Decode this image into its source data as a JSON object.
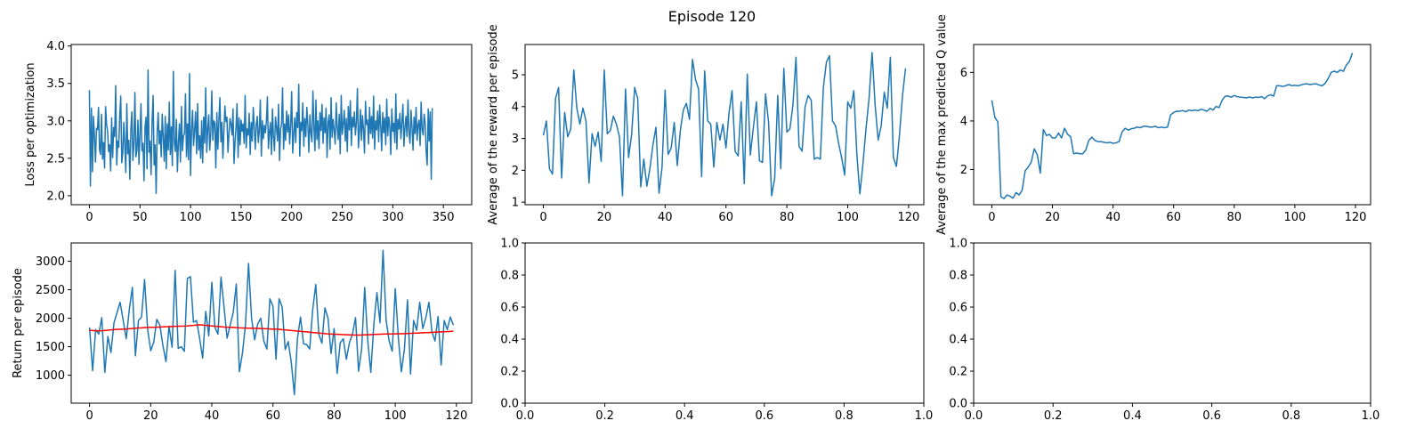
{
  "figure": {
    "suptitle": "Episode 120"
  },
  "colors": {
    "series_blue": "#1f77b4",
    "moving_average_red": "#ff0000",
    "axis": "#000000"
  },
  "chart_data": [
    {
      "id": "loss",
      "type": "line",
      "title": "",
      "xlabel": "",
      "ylabel": "Loss per optimization",
      "xlim": [
        -18,
        378
      ],
      "ylim": [
        1.88,
        4.02
      ],
      "xticks": [
        0,
        50,
        100,
        150,
        200,
        250,
        300,
        350
      ],
      "yticks": [
        2.0,
        2.5,
        3.0,
        3.5,
        4.0
      ],
      "ytick_labels": [
        "2.0",
        "2.5",
        "3.0",
        "3.5",
        "4.0"
      ],
      "series": [
        {
          "color": "#1f77b4",
          "x_start": 0,
          "x_step": 1,
          "values": [
            3.41,
            2.13,
            3.17,
            2.32,
            3.06,
            2.8,
            2.45,
            2.9,
            2.88,
            3.18,
            2.62,
            2.55,
            3.09,
            2.49,
            2.71,
            2.37,
            3.19,
            2.95,
            2.86,
            2.59,
            2.68,
            2.33,
            3.04,
            2.51,
            2.91,
            2.79,
            3.47,
            2.41,
            2.73,
            2.65,
            3.07,
            3.33,
            2.44,
            2.57,
            2.98,
            2.68,
            2.31,
            3.23,
            2.56,
            2.74,
            2.22,
            2.89,
            3.12,
            2.47,
            2.7,
            3.38,
            2.52,
            2.6,
            3.01,
            2.42,
            2.83,
            3.23,
            2.6,
            2.7,
            2.2,
            2.92,
            3.05,
            2.36,
            3.68,
            2.58,
            2.73,
            2.28,
            2.99,
            3.34,
            2.41,
            2.68,
            2.03,
            2.85,
            3.11,
            2.69,
            2.87,
            2.52,
            3.09,
            2.78,
            2.46,
            3.06,
            2.36,
            2.96,
            2.61,
            3.25,
            2.55,
            2.92,
            2.4,
            3.66,
            2.71,
            2.59,
            3.02,
            2.32,
            2.71,
            2.96,
            2.45,
            3.19,
            2.6,
            2.8,
            2.83,
            3.36,
            2.52,
            2.96,
            2.48,
            3.63,
            2.27,
            2.86,
            3.14,
            2.67,
            2.87,
            3.12,
            2.56,
            3.23,
            2.61,
            2.8,
            2.5,
            3.0,
            2.44,
            3.05,
            2.7,
            3.44,
            2.58,
            2.88,
            3.08,
            2.61,
            2.84,
            3.4,
            2.74,
            3.0,
            2.97,
            2.37,
            3.11,
            2.62,
            3.0,
            3.31,
            2.72,
            2.98,
            2.5,
            2.87,
            3.2,
            2.99,
            3.05,
            2.58,
            2.83,
            3.03,
            2.96,
            2.81,
            3.16,
            2.43,
            2.72,
            2.92,
            3.23,
            2.51,
            3.04,
            2.68,
            3.01,
            2.86,
            2.96,
            2.7,
            3.34,
            2.64,
            2.89,
            2.81,
            3.1,
            2.55,
            2.98,
            2.73,
            3.18,
            2.91,
            2.62,
            2.95,
            3.06,
            2.71,
            2.87,
            3.28,
            2.53,
            3.0,
            2.76,
            2.94,
            2.84,
            2.99,
            3.32,
            2.63,
            2.85,
            2.98,
            2.55,
            3.16,
            2.79,
            2.6,
            3.05,
            2.91,
            2.73,
            3.22,
            2.47,
            2.88,
            2.96,
            3.44,
            2.62,
            2.96,
            2.74,
            3.13,
            2.85,
            3.08,
            2.69,
            2.94,
            3.39,
            2.57,
            2.82,
            3.04,
            2.71,
            3.11,
            2.91,
            3.49,
            2.53,
            2.98,
            2.87,
            3.24,
            2.66,
            3.03,
            2.79,
            3.18,
            2.95,
            2.58,
            3.08,
            2.84,
            2.72,
            3.4,
            2.93,
            2.6,
            3.28,
            2.75,
            3.0,
            2.63,
            3.11,
            2.87,
            3.22,
            2.7,
            3.04,
            2.84,
            3.17,
            2.51,
            2.97,
            3.08,
            2.62,
            3.31,
            2.78,
            3.02,
            2.88,
            2.69,
            3.24,
            2.91,
            2.75,
            3.09,
            2.56,
            3.34,
            2.82,
            2.96,
            3.14,
            2.73,
            3.03,
            2.59,
            3.19,
            2.88,
            3.27,
            2.67,
            3.05,
            2.92,
            3.12,
            2.81,
            2.98,
            3.43,
            2.64,
            2.86,
            3.15,
            2.74,
            3.07,
            2.89,
            2.57,
            3.26,
            2.95,
            3.01,
            2.69,
            3.18,
            2.83,
            3.06,
            2.77,
            3.33,
            2.62,
            3.0,
            2.88,
            3.13,
            2.72,
            3.21,
            2.93,
            2.6,
            3.11,
            2.84,
            3.04,
            2.68,
            3.29,
            2.8,
            3.05,
            2.93,
            2.55,
            3.16,
            2.86,
            2.97,
            2.71,
            3.36,
            2.62,
            3.02,
            2.89,
            3.1,
            2.76,
            2.98,
            3.22,
            2.66,
            2.91,
            3.06,
            2.79,
            3.28,
            2.85,
            2.7,
            3.14,
            2.92,
            2.61,
            3.05,
            2.83,
            3.18,
            2.74,
            2.95,
            3.01,
            2.67,
            3.25,
            2.88,
            2.81,
            3.09,
            2.97,
            2.59,
            2.41,
            3.16,
            2.73,
            3.12,
            2.22,
            3.17
          ]
        }
      ]
    },
    {
      "id": "avg_reward",
      "type": "line",
      "title": "",
      "xlabel": "",
      "ylabel": "Average of the reward per episode",
      "xlim": [
        -6,
        125
      ],
      "ylim": [
        0.92,
        5.95
      ],
      "xticks": [
        0,
        20,
        40,
        60,
        80,
        100,
        120
      ],
      "yticks": [
        1,
        2,
        3,
        4,
        5
      ],
      "ytick_labels": [
        "1",
        "2",
        "3",
        "4",
        "5"
      ],
      "series": [
        {
          "color": "#1f77b4",
          "x_start": 0,
          "x_step": 1,
          "values": [
            3.1,
            3.55,
            2.05,
            1.88,
            4.25,
            4.6,
            1.76,
            3.82,
            3.05,
            3.3,
            5.15,
            3.95,
            3.45,
            3.95,
            3.55,
            1.6,
            3.15,
            2.75,
            3.2,
            2.28,
            5.15,
            3.15,
            3.25,
            3.7,
            3.45,
            3.05,
            1.2,
            4.55,
            2.4,
            3.12,
            4.6,
            4.25,
            1.48,
            2.35,
            1.5,
            2.05,
            2.8,
            3.35,
            1.28,
            2.1,
            4.52,
            2.5,
            2.7,
            3.5,
            2.15,
            3.25,
            3.9,
            4.1,
            3.6,
            5.48,
            4.85,
            4.55,
            1.8,
            5.12,
            3.55,
            3.45,
            2.1,
            3.5,
            2.95,
            3.45,
            2.7,
            3.8,
            4.5,
            2.6,
            2.45,
            4.15,
            1.58,
            5.02,
            2.48,
            3.35,
            4.15,
            2.3,
            2.25,
            4.4,
            3.5,
            1.2,
            1.75,
            4.35,
            2.05,
            5.2,
            3.2,
            3.3,
            4.05,
            5.55,
            2.75,
            2.6,
            4.0,
            4.35,
            4.2,
            2.35,
            2.4,
            2.35,
            4.6,
            5.4,
            5.6,
            3.55,
            3.4,
            2.85,
            2.4,
            1.85,
            4.15,
            3.95,
            4.5,
            2.5,
            1.26,
            2.2,
            3.3,
            4.25,
            5.7,
            4.05,
            2.95,
            3.4,
            4.45,
            3.95,
            5.55,
            2.4,
            2.12,
            3.1,
            4.35,
            5.2
          ]
        }
      ]
    },
    {
      "id": "max_q",
      "type": "line",
      "title": "",
      "xlabel": "",
      "ylabel": "Average of the max predicted Q value",
      "xlim": [
        -6,
        125
      ],
      "ylim": [
        0.55,
        7.15
      ],
      "xticks": [
        0,
        20,
        40,
        60,
        80,
        100,
        120
      ],
      "yticks": [
        2,
        4,
        6
      ],
      "ytick_labels": [
        "2",
        "4",
        "6"
      ],
      "series": [
        {
          "color": "#1f77b4",
          "x_start": 0,
          "x_step": 1,
          "values": [
            4.85,
            4.15,
            3.95,
            0.88,
            0.8,
            0.95,
            0.9,
            0.82,
            1.05,
            0.95,
            1.15,
            1.95,
            2.1,
            2.3,
            2.85,
            2.6,
            1.85,
            3.65,
            3.4,
            3.45,
            3.3,
            3.3,
            3.5,
            3.3,
            3.7,
            3.45,
            3.35,
            2.65,
            2.68,
            2.65,
            2.65,
            2.8,
            3.2,
            3.33,
            3.2,
            3.15,
            3.15,
            3.12,
            3.1,
            3.12,
            3.08,
            3.1,
            3.15,
            3.55,
            3.7,
            3.62,
            3.68,
            3.7,
            3.75,
            3.72,
            3.78,
            3.78,
            3.75,
            3.75,
            3.78,
            3.72,
            3.75,
            3.72,
            3.75,
            4.25,
            4.35,
            4.4,
            4.4,
            4.43,
            4.38,
            4.45,
            4.42,
            4.45,
            4.42,
            4.48,
            4.45,
            4.4,
            4.52,
            4.45,
            4.6,
            4.55,
            4.85,
            5.02,
            5.03,
            4.98,
            5.05,
            5.0,
            4.98,
            4.97,
            4.95,
            4.99,
            4.95,
            4.98,
            4.97,
            5.0,
            4.92,
            5.03,
            5.08,
            5.02,
            5.45,
            5.45,
            5.42,
            5.45,
            5.5,
            5.45,
            5.47,
            5.45,
            5.48,
            5.52,
            5.53,
            5.5,
            5.52,
            5.53,
            5.48,
            5.45,
            5.55,
            5.75,
            6.0,
            6.05,
            6.0,
            6.1,
            6.05,
            6.3,
            6.45,
            6.8
          ]
        }
      ]
    },
    {
      "id": "return",
      "type": "line",
      "title": "",
      "xlabel": "",
      "ylabel": "Return per episode",
      "xlim": [
        -6,
        125
      ],
      "ylim": [
        510,
        3320
      ],
      "xticks": [
        0,
        20,
        40,
        60,
        80,
        100,
        120
      ],
      "yticks": [
        1000,
        1500,
        2000,
        2500,
        3000
      ],
      "ytick_labels": [
        "1000",
        "1500",
        "2000",
        "2500",
        "3000"
      ],
      "series": [
        {
          "color": "#1f77b4",
          "x_start": 0,
          "x_step": 1,
          "values": [
            1840,
            1080,
            1800,
            1720,
            2010,
            1050,
            1680,
            1400,
            1920,
            2100,
            2280,
            1960,
            1640,
            2150,
            2540,
            1340,
            1960,
            2020,
            2680,
            1810,
            1430,
            1580,
            1980,
            1880,
            1520,
            1240,
            1860,
            1490,
            2840,
            1470,
            1500,
            1420,
            2700,
            2730,
            1930,
            1960,
            1650,
            1300,
            2120,
            1690,
            2630,
            1840,
            1720,
            2720,
            2190,
            1650,
            1880,
            2100,
            2600,
            1060,
            1380,
            1880,
            2960,
            2000,
            1620,
            1900,
            2000,
            1600,
            1460,
            2340,
            2210,
            1280,
            2340,
            2200,
            1450,
            1590,
            1220,
            660,
            1640,
            2020,
            1550,
            1540,
            1460,
            2150,
            2590,
            1720,
            1560,
            2180,
            2000,
            1380,
            1820,
            1030,
            1570,
            1640,
            1280,
            1570,
            1720,
            2010,
            1070,
            1460,
            2540,
            1600,
            1050,
            1900,
            2450,
            1920,
            3190,
            1970,
            1600,
            1420,
            2520,
            1660,
            1060,
            1460,
            2320,
            1020,
            1960,
            1790,
            2280,
            1820,
            2010,
            2280,
            1760,
            1600,
            2030,
            1180,
            1960,
            1800,
            2020,
            1880
          ]
        },
        {
          "color": "#ff0000",
          "x_start": 0,
          "x_step": 1,
          "values": [
            1790,
            1785,
            1780,
            1778,
            1780,
            1785,
            1790,
            1795,
            1800,
            1805,
            1805,
            1808,
            1810,
            1815,
            1820,
            1825,
            1830,
            1832,
            1835,
            1838,
            1840,
            1840,
            1842,
            1845,
            1848,
            1850,
            1852,
            1855,
            1858,
            1860,
            1860,
            1862,
            1865,
            1870,
            1875,
            1880,
            1885,
            1880,
            1875,
            1870,
            1865,
            1860,
            1855,
            1850,
            1845,
            1842,
            1840,
            1838,
            1835,
            1832,
            1830,
            1828,
            1826,
            1825,
            1824,
            1822,
            1820,
            1818,
            1815,
            1812,
            1810,
            1808,
            1805,
            1800,
            1795,
            1790,
            1785,
            1780,
            1775,
            1770,
            1765,
            1760,
            1755,
            1750,
            1745,
            1740,
            1735,
            1730,
            1725,
            1722,
            1720,
            1718,
            1715,
            1712,
            1710,
            1708,
            1706,
            1705,
            1705,
            1706,
            1708,
            1710,
            1712,
            1715,
            1718,
            1720,
            1722,
            1723,
            1724,
            1725,
            1726,
            1727,
            1728,
            1730,
            1732,
            1735,
            1738,
            1740,
            1742,
            1745,
            1748,
            1750,
            1752,
            1755,
            1758,
            1760,
            1762,
            1765,
            1768,
            1770
          ]
        }
      ]
    },
    {
      "id": "empty_1",
      "type": "line",
      "title": "",
      "xlabel": "",
      "ylabel": "",
      "xlim": [
        0,
        1
      ],
      "ylim": [
        0,
        1
      ],
      "xticks": [
        0,
        0.2,
        0.4,
        0.6,
        0.8,
        1.0
      ],
      "xtick_labels": [
        "0.0",
        "0.2",
        "0.4",
        "0.6",
        "0.8",
        "1.0"
      ],
      "yticks": [
        0,
        0.2,
        0.4,
        0.6,
        0.8,
        1.0
      ],
      "ytick_labels": [
        "0.0",
        "0.2",
        "0.4",
        "0.6",
        "0.8",
        "1.0"
      ],
      "series": []
    },
    {
      "id": "empty_2",
      "type": "line",
      "title": "",
      "xlabel": "",
      "ylabel": "",
      "xlim": [
        0,
        1
      ],
      "ylim": [
        0,
        1
      ],
      "xticks": [
        0,
        0.2,
        0.4,
        0.6,
        0.8,
        1.0
      ],
      "xtick_labels": [
        "0.0",
        "0.2",
        "0.4",
        "0.6",
        "0.8",
        "1.0"
      ],
      "yticks": [
        0,
        0.2,
        0.4,
        0.6,
        0.8,
        1.0
      ],
      "ytick_labels": [
        "0.0",
        "0.2",
        "0.4",
        "0.6",
        "0.8",
        "1.0"
      ],
      "series": []
    }
  ]
}
